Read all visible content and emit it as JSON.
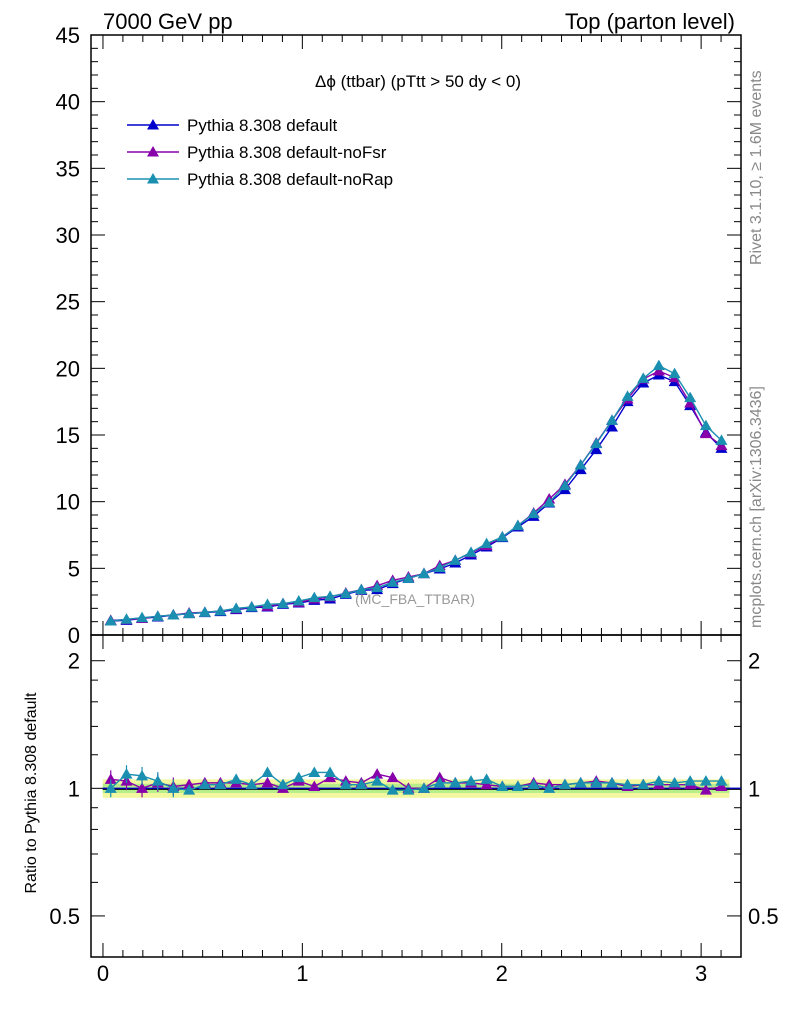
{
  "header": {
    "left": "7000 GeV pp",
    "right": "Top (parton level)"
  },
  "side": {
    "rivet": "Rivet 3.1.10, ≥ 1.6M events",
    "mcplots": "mcplots.cern.ch [arXiv:1306.3436]"
  },
  "watermark": "(MC_FBA_TTBAR)",
  "chart_data": [
    {
      "type": "line",
      "panel": "main",
      "title": "Δϕ (ttbar) (pTtt > 50 dy < 0)",
      "xlabel": "",
      "ylabel": "",
      "xlim": [
        -0.06,
        3.2
      ],
      "ylim": [
        0,
        45
      ],
      "yticks": [
        0,
        5,
        10,
        15,
        20,
        25,
        30,
        35,
        40,
        45
      ],
      "xticks": [
        0,
        1,
        2,
        3
      ],
      "legend_position": "top-left",
      "x": [
        0.039,
        0.118,
        0.196,
        0.275,
        0.353,
        0.432,
        0.511,
        0.589,
        0.668,
        0.746,
        0.825,
        0.903,
        0.982,
        1.06,
        1.139,
        1.218,
        1.296,
        1.375,
        1.453,
        1.532,
        1.61,
        1.689,
        1.767,
        1.846,
        1.924,
        2.003,
        2.081,
        2.16,
        2.238,
        2.317,
        2.396,
        2.474,
        2.553,
        2.631,
        2.71,
        2.788,
        2.867,
        2.945,
        3.024,
        3.102
      ],
      "series": [
        {
          "name": "Pythia 8.308 default",
          "color": "#0000cc",
          "values": [
            1.05,
            1.1,
            1.25,
            1.35,
            1.5,
            1.6,
            1.68,
            1.75,
            1.9,
            2.05,
            2.1,
            2.3,
            2.4,
            2.6,
            2.7,
            3.05,
            3.35,
            3.4,
            3.85,
            4.25,
            4.6,
            4.95,
            5.4,
            6.0,
            6.6,
            7.3,
            8.1,
            8.9,
            9.9,
            10.9,
            12.4,
            13.9,
            15.6,
            17.5,
            18.9,
            19.5,
            19.0,
            17.2,
            15.2,
            14.0
          ]
        },
        {
          "name": "Pythia 8.308 default-noFsr",
          "color": "#8800aa",
          "values": [
            1.1,
            1.15,
            1.25,
            1.4,
            1.5,
            1.65,
            1.7,
            1.8,
            1.95,
            2.1,
            2.15,
            2.35,
            2.45,
            2.7,
            2.85,
            3.15,
            3.4,
            3.7,
            4.1,
            4.35,
            4.6,
            5.2,
            5.6,
            6.15,
            6.7,
            7.35,
            8.2,
            9.15,
            10.2,
            11.3,
            12.75,
            14.4,
            16.1,
            17.7,
            19.2,
            19.8,
            19.3,
            17.4,
            15.1,
            14.2
          ]
        },
        {
          "name": "Pythia 8.308 default-noRap",
          "color": "#1a8fb0",
          "values": [
            1.05,
            1.18,
            1.3,
            1.4,
            1.5,
            1.6,
            1.7,
            1.8,
            2.0,
            2.1,
            2.3,
            2.35,
            2.55,
            2.8,
            2.9,
            3.1,
            3.4,
            3.55,
            3.95,
            4.25,
            4.6,
            5.05,
            5.6,
            6.2,
            6.85,
            7.35,
            8.2,
            9.1,
            9.95,
            11.2,
            12.75,
            14.35,
            16.1,
            17.9,
            19.25,
            20.2,
            19.6,
            17.8,
            15.7,
            14.6
          ]
        }
      ]
    },
    {
      "type": "line",
      "panel": "ratio",
      "ylabel": "Ratio to Pythia 8.308 default",
      "xlim": [
        -0.06,
        3.2
      ],
      "ylim": [
        0.4,
        2.3
      ],
      "ytick_labels": [
        "0.5",
        "1",
        "2"
      ],
      "yticks": [
        0.5,
        1,
        2
      ],
      "x": [
        0.039,
        0.118,
        0.196,
        0.275,
        0.353,
        0.432,
        0.511,
        0.589,
        0.668,
        0.746,
        0.825,
        0.903,
        0.982,
        1.06,
        1.139,
        1.218,
        1.296,
        1.375,
        1.453,
        1.532,
        1.61,
        1.689,
        1.767,
        1.846,
        1.924,
        2.003,
        2.081,
        2.16,
        2.238,
        2.317,
        2.396,
        2.474,
        2.553,
        2.631,
        2.71,
        2.788,
        2.867,
        2.945,
        3.024,
        3.102
      ],
      "band_reference": 1.0,
      "band_yellow": [
        0.95,
        1.05
      ],
      "band_green": [
        0.975,
        1.025
      ],
      "series": [
        {
          "name": "Pythia 8.308 default-noFsr",
          "color": "#8800aa",
          "values": [
            1.05,
            1.04,
            1.0,
            1.03,
            1.01,
            1.02,
            1.03,
            1.03,
            1.03,
            1.02,
            1.03,
            1.0,
            1.04,
            1.01,
            1.06,
            1.04,
            1.03,
            1.08,
            1.06,
            1.0,
            1.0,
            1.06,
            1.03,
            1.03,
            1.02,
            1.01,
            1.01,
            1.03,
            1.02,
            1.02,
            1.03,
            1.04,
            1.03,
            1.01,
            1.02,
            1.02,
            1.02,
            1.02,
            0.99,
            1.01
          ]
        },
        {
          "name": "Pythia 8.308 default-noRap",
          "color": "#1a8fb0",
          "values": [
            1.0,
            1.08,
            1.07,
            1.04,
            1.0,
            0.99,
            1.02,
            1.02,
            1.05,
            1.02,
            1.09,
            1.02,
            1.06,
            1.09,
            1.09,
            1.02,
            1.02,
            1.04,
            0.99,
            0.99,
            1.0,
            1.03,
            1.03,
            1.04,
            1.05,
            1.01,
            1.01,
            1.02,
            1.0,
            1.02,
            1.03,
            1.03,
            1.03,
            1.02,
            1.02,
            1.04,
            1.03,
            1.04,
            1.04,
            1.04
          ]
        }
      ]
    }
  ]
}
